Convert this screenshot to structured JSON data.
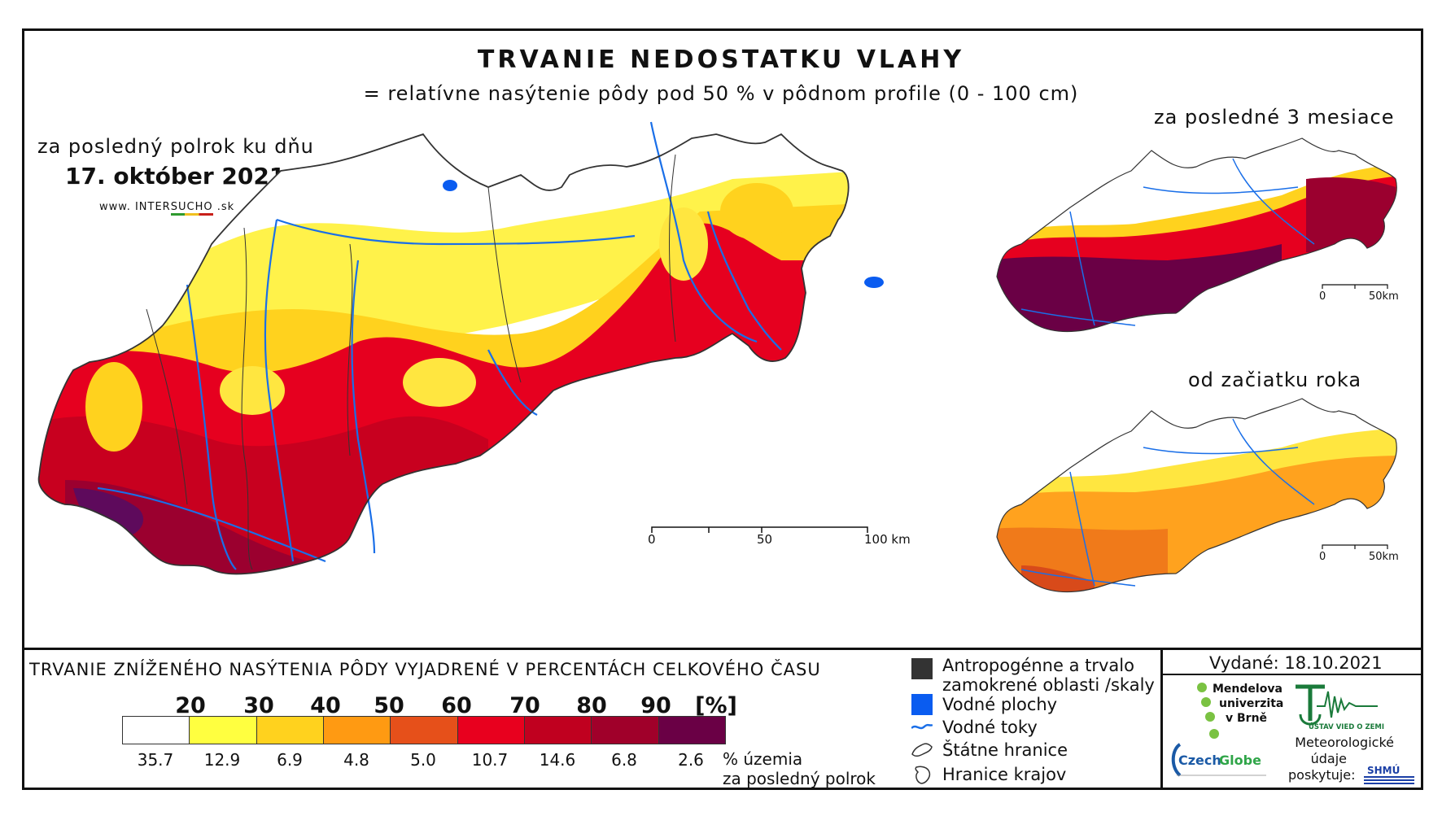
{
  "title": "TRVANIE NEDOSTATKU VLAHY",
  "subtitle": "= relatívne nasýtenie pôdy pod 50 % v pôdnom profile (0 - 100 cm)",
  "main_map": {
    "period": "za posledný polrok ku dňu",
    "date": "17. október 2021",
    "website_prefix": "www. INTER",
    "website_highlight": "SUCHO",
    "website_suffix": " .sk",
    "scale": {
      "l0": "0",
      "l1": "50",
      "l2": "100 km"
    }
  },
  "inset_3m": {
    "period": "za posledné 3 mesiace",
    "scale": {
      "l0": "0",
      "l1": "50km"
    }
  },
  "inset_ytd": {
    "period": "od začiatku roka",
    "scale": {
      "l0": "0",
      "l1": "50km"
    }
  },
  "legend": {
    "title": "TRVANIE ZNÍŽENÉHO NASÝTENIA PÔDY VYJADRENÉ V PERCENTÁCH CELKOVÉHO ČASU",
    "thresholds": [
      "20",
      "30",
      "40",
      "50",
      "60",
      "70",
      "80",
      "90",
      "[%]"
    ],
    "colors": [
      "#ffffff",
      "#ffff40",
      "#ffd21e",
      "#ff9a12",
      "#e6501a",
      "#e8001e",
      "#c0001f",
      "#a0002a",
      "#6a0045"
    ],
    "percent_of_territory": [
      "35.7",
      "12.9",
      "6.9",
      "4.8",
      "5.0",
      "10.7",
      "14.6",
      "6.8",
      "2.6"
    ],
    "caption_line1": "% územia",
    "caption_line2": "za posledný polrok"
  },
  "symbols": {
    "anthropogenic_line1": "Antropogénne a trvalo",
    "anthropogenic_line2": "zamokrené oblasti /skaly",
    "water_bodies": "Vodné plochy",
    "rivers": "Vodné toky",
    "state_border": "Štátne hranice",
    "region_border": "Hranice krajov",
    "colors": {
      "anthropogenic": "#333333",
      "water": "#0a5cf0",
      "river": "#1a6fe8"
    }
  },
  "issued": "Vydané: 18.10.2021",
  "credits": {
    "mendel_line1": "Mendelova",
    "mendel_line2": "univerzita",
    "mendel_line3": "v Brně",
    "czechglobe_a": "Czech",
    "czechglobe_b": "Globe",
    "uvz": "ÚSTAV VIED O ZEMI",
    "meteo_line1": "Meteorologické",
    "meteo_line2": "údaje",
    "meteo_line3": "poskytuje:",
    "shmu": "SHMÚ"
  }
}
